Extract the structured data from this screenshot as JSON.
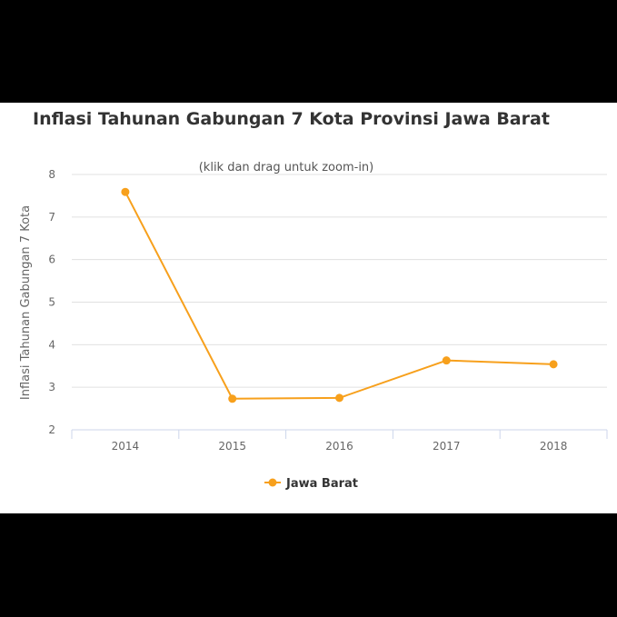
{
  "chart_data": {
    "type": "line",
    "title": "Inflasi Tahunan Gabungan 7 Kota Provinsi Jawa Barat",
    "subtitle": "(klik dan drag untuk zoom-in)",
    "xlabel": "",
    "ylabel": "Inflasi Tahunan Gabungan 7 Kota",
    "categories": [
      "2014",
      "2015",
      "2016",
      "2017",
      "2018"
    ],
    "ylim": [
      2,
      8
    ],
    "yticks": [
      "2",
      "3",
      "4",
      "5",
      "6",
      "7",
      "8"
    ],
    "grid": true,
    "legend_position": "bottom-center",
    "series": [
      {
        "name": "Jawa Barat",
        "color": "#f7a01c",
        "values": [
          7.59,
          2.73,
          2.75,
          3.63,
          3.54
        ]
      }
    ]
  }
}
